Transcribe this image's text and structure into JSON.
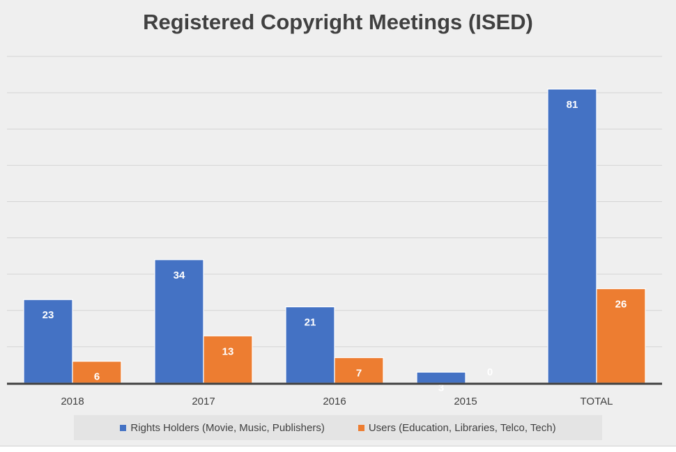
{
  "chart_data": {
    "type": "bar",
    "title": "Registered Copyright Meetings (ISED)",
    "categories": [
      "2018",
      "2017",
      "2016",
      "2015",
      "TOTAL"
    ],
    "series": [
      {
        "name": "Rights Holders (Movie, Music, Publishers)",
        "values": [
          23,
          34,
          21,
          3,
          81
        ],
        "color": "#4472c4"
      },
      {
        "name": "Users (Education, Libraries, Telco, Tech)",
        "values": [
          6,
          13,
          7,
          0,
          26
        ],
        "color": "#ed7d31"
      }
    ],
    "ylim": [
      0,
      90
    ],
    "grid": true,
    "legend_position": "bottom",
    "data_labels": true
  }
}
